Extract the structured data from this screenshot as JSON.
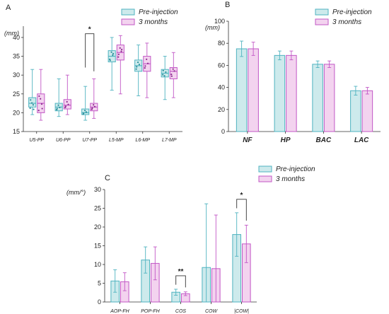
{
  "colors": {
    "pre_fill": "#cdeaec",
    "pre_stroke": "#4fb3c0",
    "post_fill": "#f3d3ef",
    "post_stroke": "#c257c6",
    "pre_dot": "#2a8f9b",
    "post_dot": "#8c2a8f"
  },
  "chart_data": [
    {
      "type": "box",
      "panel": "A",
      "ylabel": "(mm)",
      "ylim": [
        15,
        43
      ],
      "yticks": [
        15,
        20,
        25,
        30,
        35,
        40
      ],
      "categories": [
        "U5-PP",
        "U6-PP",
        "U7-PP",
        "L5-MP",
        "L6-MP",
        "L7-MP"
      ],
      "legend": [
        "Pre-injection",
        "3 months"
      ],
      "series": [
        {
          "boxes": [
            {
              "min": 19.5,
              "q1": 21.5,
              "median": 22.5,
              "q3": 24,
              "max": 31.5,
              "points": [
                21.2,
                22.1,
                22.6,
                23.4,
                20.9
              ]
            },
            {
              "min": 19,
              "q1": 20.5,
              "median": 21.5,
              "q3": 22.5,
              "max": 29,
              "points": [
                20.8,
                21.4,
                22.0,
                21.1
              ]
            },
            {
              "min": 18,
              "q1": 19.5,
              "median": 20,
              "q3": 21,
              "max": 27,
              "points": [
                19.6,
                20.2,
                20.6,
                19.9
              ]
            },
            {
              "min": 26,
              "q1": 33.5,
              "median": 35,
              "q3": 36.5,
              "max": 40,
              "points": [
                34.2,
                35.3,
                36.1,
                33.9,
                35.7
              ]
            },
            {
              "min": 24.5,
              "q1": 31,
              "median": 32.5,
              "q3": 34,
              "max": 38,
              "points": [
                31.6,
                32.8,
                33.4,
                32.2
              ]
            },
            {
              "min": 23.5,
              "q1": 29.5,
              "median": 30.5,
              "q3": 31.5,
              "max": 35,
              "points": [
                30.1,
                30.8,
                29.8,
                31.2
              ]
            }
          ]
        },
        {
          "boxes": [
            {
              "min": 18,
              "q1": 20,
              "median": 22.5,
              "q3": 25,
              "max": 31.5,
              "points": [
                20.6,
                22.3,
                23.7,
                24.4,
                21.1
              ]
            },
            {
              "min": 19.5,
              "q1": 21,
              "median": 22,
              "q3": 23.5,
              "max": 30,
              "points": [
                21.4,
                22.2,
                22.9,
                21.7
              ]
            },
            {
              "min": 18.5,
              "q1": 20.5,
              "median": 21.5,
              "q3": 22.5,
              "max": 29,
              "points": [
                20.9,
                21.6,
                22.1,
                21.2
              ]
            },
            {
              "min": 25,
              "q1": 34,
              "median": 36,
              "q3": 38,
              "max": 40.5,
              "points": [
                34.8,
                36.3,
                37.2,
                35.5,
                36.8
              ]
            },
            {
              "min": 24,
              "q1": 31,
              "median": 33,
              "q3": 35,
              "max": 38.5,
              "points": [
                31.9,
                33.1,
                34.2,
                32.4
              ]
            },
            {
              "min": 24,
              "q1": 29,
              "median": 31,
              "q3": 32,
              "max": 36,
              "points": [
                30.2,
                31.1,
                31.6,
                29.7
              ]
            }
          ]
        }
      ],
      "annotations": [
        {
          "between": "U7-PP",
          "label": "*"
        }
      ]
    },
    {
      "type": "bar",
      "panel": "B",
      "ylabel": "(mm)",
      "ylim": [
        0,
        100
      ],
      "yticks": [
        0,
        20,
        40,
        60,
        80,
        100
      ],
      "categories": [
        "NF",
        "HP",
        "BAC",
        "LAC"
      ],
      "legend": [
        "Pre-injection",
        "3 months"
      ],
      "series": [
        {
          "values": [
            75,
            69,
            61,
            37
          ],
          "errors": [
            7,
            4,
            3,
            4
          ]
        },
        {
          "values": [
            75,
            69,
            61,
            37
          ],
          "errors": [
            6,
            4,
            3,
            3
          ]
        }
      ]
    },
    {
      "type": "bar",
      "panel": "C",
      "ylabel": "(mm/°)",
      "ylim": [
        0,
        30
      ],
      "yticks": [
        0,
        5,
        10,
        15,
        20,
        25,
        30
      ],
      "categories": [
        "AOP-FH",
        "POP-FH",
        "COS",
        "COW",
        "|COW|"
      ],
      "legend": [
        "Pre-injection",
        "3 months"
      ],
      "series": [
        {
          "values": [
            5.6,
            11.2,
            2.6,
            9.2,
            18.0
          ],
          "errors": [
            3.0,
            3.5,
            0.8,
            17.0,
            5.8
          ]
        },
        {
          "values": [
            5.4,
            10.3,
            2.2,
            8.9,
            15.5
          ],
          "errors": [
            2.4,
            4.4,
            0.5,
            14.3,
            5.0
          ]
        }
      ],
      "annotations": [
        {
          "between": "COS",
          "label": "**"
        },
        {
          "between": "|COW|",
          "label": "*"
        }
      ]
    }
  ]
}
